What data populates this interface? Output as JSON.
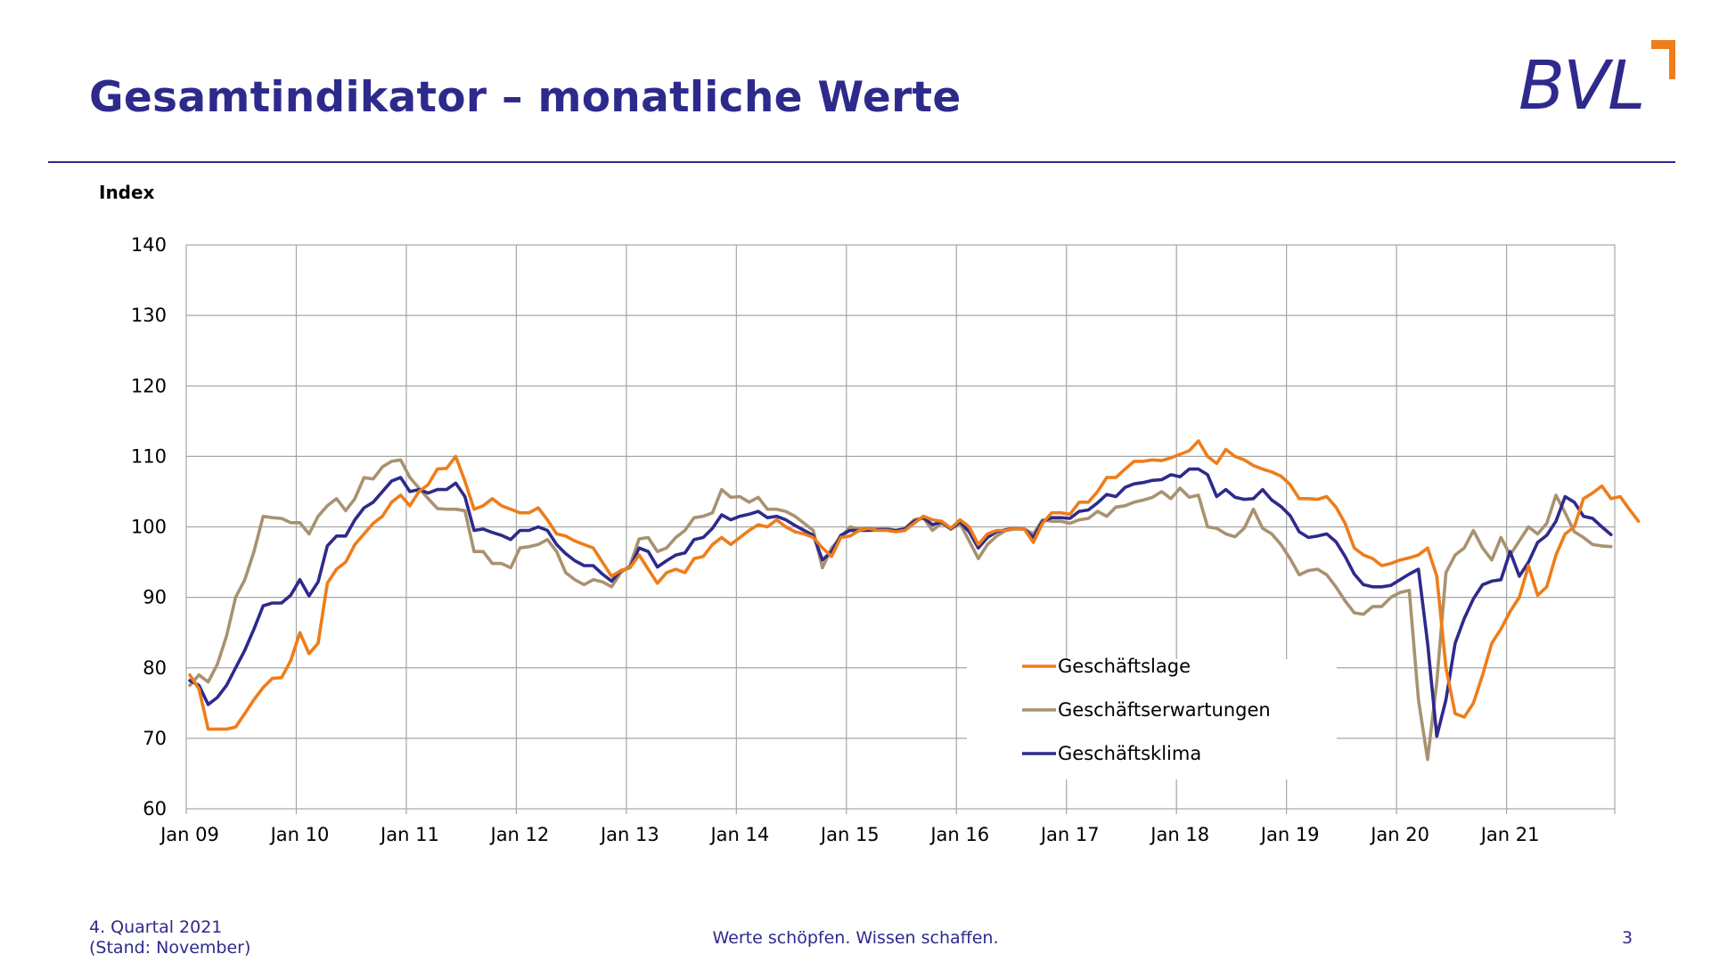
{
  "header": {
    "title": "Gesamtindikator – monatliche Werte",
    "logo_text": "BVL"
  },
  "footer": {
    "quarter": "4. Quartal 2021",
    "stand": "(Stand: November)",
    "slogan": "Werte schöpfen. Wissen schaffen.",
    "page_number": "3"
  },
  "colors": {
    "brand_blue": "#2e2a8c",
    "geschaeftslage": "#ee7d1a",
    "geschaeftserwartungen": "#a89270",
    "geschaeftsklima": "#2e2a8c",
    "logo_orange": "#ee7d1a"
  },
  "chart_data": {
    "type": "line",
    "ylabel": "Index",
    "xlabel": "",
    "ylim": [
      60,
      140
    ],
    "yticks": [
      60,
      70,
      80,
      90,
      100,
      110,
      120,
      130,
      140
    ],
    "grid": true,
    "legend_position": "bottom-center",
    "x_start": "Jan 09",
    "x_ticks": [
      "Jan 09",
      "Jan 10",
      "Jan 11",
      "Jan 12",
      "Jan 13",
      "Jan 14",
      "Jan 15",
      "Jan 16",
      "Jan 17",
      "Jan 18",
      "Jan 19",
      "Jan 20",
      "Jan 21"
    ],
    "series": [
      {
        "name": "Geschäftslage",
        "color": "#ee7d1a",
        "values": [
          79,
          77,
          71.3,
          71.3,
          71.3,
          71.6,
          73.5,
          75.5,
          77.2,
          78.5,
          78.6,
          81,
          85,
          82,
          83.5,
          92,
          94,
          95,
          97.5,
          99,
          100.5,
          101.5,
          103.5,
          104.5,
          103,
          105,
          106,
          108.2,
          108.3,
          110,
          106.5,
          102.5,
          103,
          104,
          103,
          102.5,
          102,
          102,
          102.7,
          101,
          99,
          98.7,
          98,
          97.5,
          97,
          95,
          93,
          93.8,
          94.2,
          96,
          94,
          92,
          93.5,
          94,
          93.5,
          95.5,
          95.8,
          97.5,
          98.5,
          97.5,
          98.5,
          99.5,
          100.3,
          100,
          101,
          100,
          99.3,
          99,
          98.5,
          97,
          95.8,
          98.5,
          98.7,
          99.5,
          99.8,
          99.5,
          99.5,
          99.3,
          99.5,
          100.5,
          101.5,
          101,
          100.8,
          99.8,
          101,
          100,
          97.5,
          99,
          99.5,
          99.5,
          99.8,
          99.7,
          97.8,
          100.5,
          102,
          102,
          101.8,
          103.5,
          103.5,
          105,
          107,
          107,
          108.2,
          109.3,
          109.3,
          109.5,
          109.4,
          109.8,
          110.3,
          110.8,
          112.2,
          110,
          109,
          111,
          110,
          109.5,
          108.7,
          108.2,
          107.8,
          107.2,
          106,
          104,
          104,
          103.9,
          104.3,
          102.8,
          100.5,
          97,
          96,
          95.5,
          94.5,
          94.8,
          95.3,
          95.6,
          96,
          97,
          93,
          80,
          73.5,
          73,
          75,
          79,
          83.5,
          85.5,
          88,
          90,
          94.5,
          90.3,
          91.5,
          96,
          99,
          100,
          104,
          104.8,
          105.8,
          104,
          104.3,
          102.5,
          100.8
        ]
      },
      {
        "name": "Geschäftserwartungen",
        "color": "#a89270",
        "values": [
          77.5,
          79,
          78,
          80.5,
          84.5,
          90,
          92.5,
          96.5,
          101.5,
          101.3,
          101.2,
          100.6,
          100.6,
          99,
          101.5,
          103,
          104,
          102.3,
          104,
          107,
          106.8,
          108.5,
          109.3,
          109.5,
          107,
          105.5,
          104,
          102.6,
          102.5,
          102.5,
          102.3,
          96.5,
          96.5,
          94.8,
          94.8,
          94.2,
          97,
          97.2,
          97.5,
          98.2,
          96.5,
          93.5,
          92.5,
          91.8,
          92.5,
          92.2,
          91.5,
          93.5,
          94.5,
          98.3,
          98.5,
          96.5,
          97,
          98.5,
          99.5,
          101.3,
          101.5,
          102,
          105.3,
          104.2,
          104.3,
          103.5,
          104.2,
          102.5,
          102.5,
          102.2,
          101.5,
          100.5,
          99.5,
          94.2,
          97,
          98.5,
          100,
          99.7,
          99.8,
          99.7,
          99.8,
          99.5,
          99.8,
          101,
          101.3,
          99.5,
          100.5,
          99.7,
          100.5,
          98,
          95.5,
          97.5,
          98.7,
          99.5,
          99.7,
          99.7,
          99,
          101,
          100.8,
          100.8,
          100.5,
          101,
          101.2,
          102.2,
          101.5,
          102.8,
          103,
          103.5,
          103.8,
          104.2,
          105,
          104,
          105.5,
          104.2,
          104.5,
          100,
          99.8,
          99,
          98.6,
          99.8,
          102.5,
          99.8,
          99,
          97.5,
          95.5,
          93.2,
          93.8,
          94,
          93.2,
          91.5,
          89.5,
          87.8,
          87.6,
          88.7,
          88.7,
          90,
          90.7,
          91,
          75.5,
          67,
          78,
          93.5,
          96,
          97,
          99.5,
          97,
          95.3,
          98.5,
          96,
          98,
          100,
          99,
          100.5,
          104.5,
          102,
          99.3,
          98.5,
          97.5,
          97.3,
          97.2
        ]
      },
      {
        "name": "Geschäftsklima",
        "color": "#2e2a8c",
        "values": [
          78.2,
          77.5,
          74.8,
          75.8,
          77.5,
          80,
          82.5,
          85.5,
          88.8,
          89.2,
          89.2,
          90.3,
          92.5,
          90.2,
          92.2,
          97.3,
          98.7,
          98.7,
          101,
          102.7,
          103.5,
          105,
          106.5,
          107,
          105,
          105.3,
          104.8,
          105.3,
          105.3,
          106.2,
          104.3,
          99.5,
          99.7,
          99.2,
          98.8,
          98.2,
          99.5,
          99.5,
          100,
          99.5,
          97.5,
          96.2,
          95.2,
          94.5,
          94.5,
          93.3,
          92.3,
          93.8,
          94.2,
          97,
          96.5,
          94.3,
          95.2,
          96,
          96.3,
          98.2,
          98.5,
          99.8,
          101.7,
          101,
          101.5,
          101.8,
          102.2,
          101.3,
          101.5,
          101,
          100.2,
          99.5,
          98.8,
          95.3,
          96.5,
          98.8,
          99.5,
          99.5,
          99.5,
          99.6,
          99.6,
          99.5,
          99.7,
          100.8,
          101.3,
          100.3,
          100.7,
          99.7,
          100.7,
          99.3,
          97,
          98.5,
          99.3,
          99.6,
          99.8,
          99.7,
          98.5,
          100.8,
          101.3,
          101.3,
          101.2,
          102.2,
          102.4,
          103.4,
          104.6,
          104.3,
          105.6,
          106.1,
          106.3,
          106.6,
          106.7,
          107.4,
          107.1,
          108.2,
          108.2,
          107.4,
          104.3,
          105.3,
          104.2,
          103.9,
          104,
          105.3,
          103.8,
          102.9,
          101.6,
          99.3,
          98.5,
          98.7,
          99,
          97.9,
          95.8,
          93.3,
          91.8,
          91.5,
          91.5,
          91.7,
          92.5,
          93.3,
          94,
          83.5,
          70.3,
          75.5,
          83.5,
          87,
          89.8,
          91.8,
          92.3,
          92.5,
          96.5,
          93,
          95,
          97.8,
          98.8,
          100.8,
          104.3,
          103.5,
          101.5,
          101.2,
          100,
          98.9
        ]
      }
    ]
  }
}
